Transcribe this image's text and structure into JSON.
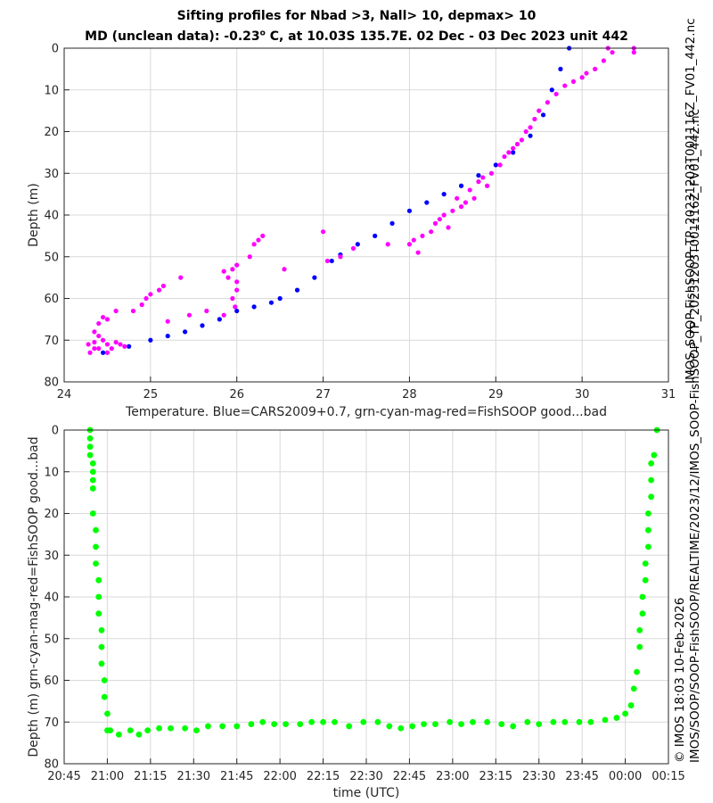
{
  "page": {
    "title_line1": "Sifting profiles for Nbad >3, Nall> 10, depmax> 10",
    "title_line2_pre": "MD (unclean data): -0.23",
    "title_line2_sup": "o",
    "title_line2_post": " C, at 10.03S 135.7E. 02 Dec - 03 Dec 2023 unit 442",
    "right_label": "IMOS_SOOP-FishSOOP_TP_20231203T001116Z_FV01_442.nc",
    "footer_label1": "© IMOS 18:03 10-Feb-2026",
    "footer_label2": "IMOS/SOOP/SOOP-FishSOOP/REALTIME/2023/12/IMOS_SOOP-FishSOOP_TP_20231203T001116Z_FV01_442.nc"
  },
  "colors": {
    "blue": "#0000ff",
    "magenta": "#ff00ff",
    "green": "#00ff00",
    "grid": "#d9d9d9",
    "axis": "#262626"
  },
  "chart_data": [
    {
      "type": "scatter",
      "xlabel": "Temperature. Blue=CARS2009+0.7, grn-cyan-mag-red=FishSOOP good...bad",
      "ylabel": "Depth (m)",
      "xlim": [
        24,
        31
      ],
      "ylim": [
        80,
        0
      ],
      "x_ticks": [
        "24",
        "25",
        "26",
        "27",
        "28",
        "29",
        "30",
        "31"
      ],
      "y_ticks": [
        "0",
        "10",
        "20",
        "30",
        "40",
        "50",
        "60",
        "70",
        "80"
      ],
      "grid": true,
      "series": [
        {
          "color": "blue",
          "points": [
            [
              24.45,
              73
            ],
            [
              24.75,
              71.5
            ],
            [
              25.0,
              70
            ],
            [
              25.2,
              69
            ],
            [
              25.4,
              68
            ],
            [
              25.6,
              66.5
            ],
            [
              25.8,
              65
            ],
            [
              26.0,
              63
            ],
            [
              26.2,
              62
            ],
            [
              26.4,
              61
            ],
            [
              26.5,
              60
            ],
            [
              26.7,
              58
            ],
            [
              26.9,
              55
            ],
            [
              27.1,
              51
            ],
            [
              27.2,
              49.5
            ],
            [
              27.4,
              47
            ],
            [
              27.6,
              45
            ],
            [
              27.8,
              42
            ],
            [
              28.0,
              39
            ],
            [
              28.2,
              37
            ],
            [
              28.4,
              35
            ],
            [
              28.6,
              33
            ],
            [
              28.8,
              30.5
            ],
            [
              29.0,
              28
            ],
            [
              29.2,
              25
            ],
            [
              29.4,
              21
            ],
            [
              29.55,
              16
            ],
            [
              29.65,
              10
            ],
            [
              29.75,
              5
            ],
            [
              29.85,
              0
            ]
          ]
        },
        {
          "color": "magenta",
          "points": [
            [
              24.3,
              73
            ],
            [
              24.28,
              71
            ],
            [
              24.35,
              70.5
            ],
            [
              24.4,
              72
            ],
            [
              24.45,
              70
            ],
            [
              24.5,
              71
            ],
            [
              24.55,
              72
            ],
            [
              24.6,
              70.5
            ],
            [
              24.65,
              71
            ],
            [
              24.5,
              73
            ],
            [
              24.35,
              68
            ],
            [
              24.4,
              66
            ],
            [
              24.45,
              64.5
            ],
            [
              24.5,
              65
            ],
            [
              24.6,
              63
            ],
            [
              24.4,
              69
            ],
            [
              24.7,
              71.5
            ],
            [
              24.35,
              72
            ],
            [
              24.8,
              63
            ],
            [
              24.9,
              61.5
            ],
            [
              24.95,
              60
            ],
            [
              25.0,
              59
            ],
            [
              25.1,
              58
            ],
            [
              25.15,
              57
            ],
            [
              25.35,
              55
            ],
            [
              25.2,
              65.5
            ],
            [
              25.45,
              64
            ],
            [
              25.65,
              63
            ],
            [
              25.9,
              55
            ],
            [
              25.95,
              53
            ],
            [
              26.0,
              52
            ],
            [
              25.85,
              53.5
            ],
            [
              25.95,
              60
            ],
            [
              26.0,
              58
            ],
            [
              26.0,
              56
            ],
            [
              25.98,
              62
            ],
            [
              25.85,
              64
            ],
            [
              26.15,
              50
            ],
            [
              26.2,
              47
            ],
            [
              26.25,
              46
            ],
            [
              26.3,
              45
            ],
            [
              26.55,
              53
            ],
            [
              27.0,
              44
            ],
            [
              27.05,
              51
            ],
            [
              27.2,
              50
            ],
            [
              27.35,
              48
            ],
            [
              27.75,
              47
            ],
            [
              28.0,
              47
            ],
            [
              28.05,
              46
            ],
            [
              28.15,
              45
            ],
            [
              28.25,
              44
            ],
            [
              28.3,
              42
            ],
            [
              28.35,
              41
            ],
            [
              28.4,
              40
            ],
            [
              28.5,
              39
            ],
            [
              28.6,
              38
            ],
            [
              28.65,
              37
            ],
            [
              28.55,
              36
            ],
            [
              28.7,
              34
            ],
            [
              28.8,
              32
            ],
            [
              28.85,
              31
            ],
            [
              28.95,
              30
            ],
            [
              29.05,
              28
            ],
            [
              29.1,
              26
            ],
            [
              29.15,
              25
            ],
            [
              29.2,
              24
            ],
            [
              29.25,
              23
            ],
            [
              29.3,
              22
            ],
            [
              29.35,
              20
            ],
            [
              29.4,
              19
            ],
            [
              29.45,
              17
            ],
            [
              29.5,
              15
            ],
            [
              29.6,
              13
            ],
            [
              29.7,
              11
            ],
            [
              29.8,
              9
            ],
            [
              29.9,
              8
            ],
            [
              30.0,
              7
            ],
            [
              30.05,
              6
            ],
            [
              30.15,
              5
            ],
            [
              30.25,
              3
            ],
            [
              30.35,
              1
            ],
            [
              30.6,
              1
            ],
            [
              30.3,
              0
            ],
            [
              30.6,
              0
            ],
            [
              28.9,
              33
            ],
            [
              28.75,
              36
            ],
            [
              28.45,
              43
            ],
            [
              28.1,
              49
            ]
          ]
        }
      ]
    },
    {
      "type": "scatter",
      "xlabel": "time (UTC)",
      "ylabel": "Depth (m) grn-cyan-mag-red=FishSOOP good...bad",
      "xlim": [
        "20:45",
        "00:15"
      ],
      "ylim": [
        80,
        0
      ],
      "x_ticks": [
        "20:45",
        "21:00",
        "21:15",
        "21:30",
        "21:45",
        "22:00",
        "22:15",
        "22:30",
        "22:45",
        "23:00",
        "23:15",
        "23:30",
        "23:45",
        "00:00",
        "00:15"
      ],
      "y_ticks": [
        "0",
        "10",
        "20",
        "30",
        "40",
        "50",
        "60",
        "70",
        "80"
      ],
      "grid": true,
      "series": [
        {
          "color": "green",
          "points": [
            [
              "20:54",
              0
            ],
            [
              "20:54",
              2
            ],
            [
              "20:54",
              4
            ],
            [
              "20:54",
              6
            ],
            [
              "20:55",
              8
            ],
            [
              "20:55",
              10
            ],
            [
              "20:55",
              12
            ],
            [
              "20:55",
              14
            ],
            [
              "20:55",
              20
            ],
            [
              "20:56",
              24
            ],
            [
              "20:56",
              28
            ],
            [
              "20:56",
              32
            ],
            [
              "20:57",
              36
            ],
            [
              "20:57",
              40
            ],
            [
              "20:57",
              44
            ],
            [
              "20:58",
              48
            ],
            [
              "20:58",
              52
            ],
            [
              "20:58",
              56
            ],
            [
              "20:59",
              60
            ],
            [
              "20:59",
              64
            ],
            [
              "21:00",
              68
            ],
            [
              "21:00",
              72
            ],
            [
              "21:01",
              72
            ],
            [
              "21:04",
              73
            ],
            [
              "21:08",
              72
            ],
            [
              "21:11",
              73
            ],
            [
              "21:14",
              72
            ],
            [
              "21:18",
              71.5
            ],
            [
              "21:22",
              71.5
            ],
            [
              "21:27",
              71.5
            ],
            [
              "21:31",
              72
            ],
            [
              "21:35",
              71
            ],
            [
              "21:40",
              71
            ],
            [
              "21:45",
              71
            ],
            [
              "21:50",
              70.5
            ],
            [
              "21:54",
              70
            ],
            [
              "21:58",
              70.5
            ],
            [
              "22:02",
              70.5
            ],
            [
              "22:07",
              70.5
            ],
            [
              "22:11",
              70
            ],
            [
              "22:15",
              70
            ],
            [
              "22:19",
              70
            ],
            [
              "22:24",
              71
            ],
            [
              "22:29",
              70
            ],
            [
              "22:34",
              70
            ],
            [
              "22:38",
              71
            ],
            [
              "22:42",
              71.5
            ],
            [
              "22:46",
              71
            ],
            [
              "22:50",
              70.5
            ],
            [
              "22:54",
              70.5
            ],
            [
              "22:59",
              70
            ],
            [
              "23:03",
              70.5
            ],
            [
              "23:07",
              70
            ],
            [
              "23:12",
              70
            ],
            [
              "23:17",
              70.5
            ],
            [
              "23:21",
              71
            ],
            [
              "23:26",
              70
            ],
            [
              "23:30",
              70.5
            ],
            [
              "23:35",
              70
            ],
            [
              "23:39",
              70
            ],
            [
              "23:44",
              70
            ],
            [
              "23:48",
              70
            ],
            [
              "23:53",
              69.5
            ],
            [
              "23:57",
              69
            ],
            [
              "00:00",
              68
            ],
            [
              "00:02",
              66
            ],
            [
              "00:03",
              62
            ],
            [
              "00:04",
              58
            ],
            [
              "00:05",
              52
            ],
            [
              "00:05",
              48
            ],
            [
              "00:06",
              44
            ],
            [
              "00:06",
              40
            ],
            [
              "00:07",
              36
            ],
            [
              "00:07",
              32
            ],
            [
              "00:08",
              28
            ],
            [
              "00:08",
              24
            ],
            [
              "00:08",
              20
            ],
            [
              "00:09",
              16
            ],
            [
              "00:09",
              12
            ],
            [
              "00:09",
              8
            ],
            [
              "00:10",
              6
            ],
            [
              "00:11",
              0
            ]
          ]
        }
      ]
    }
  ]
}
